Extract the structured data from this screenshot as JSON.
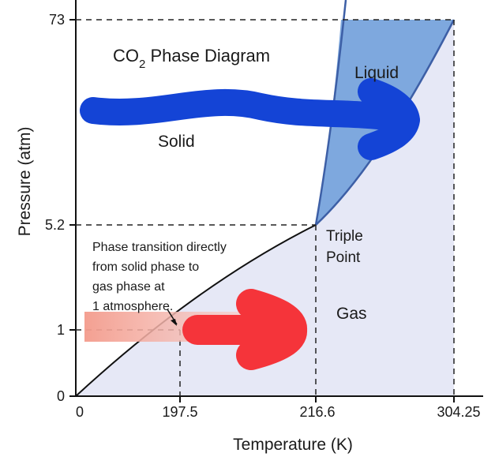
{
  "title": {
    "main": "CO",
    "subscript": "2",
    "rest": " Phase Diagram"
  },
  "axes": {
    "x_label": "Temperature (K)",
    "y_label": "Pressure (atm)",
    "x_ticks": [
      "0",
      "197.5",
      "216.6",
      "304.25"
    ],
    "y_ticks": [
      "73",
      "5.2",
      "1",
      "0"
    ]
  },
  "regions": {
    "solid": "Solid",
    "liquid": "Liquid",
    "gas": "Gas"
  },
  "triple_point": {
    "line1": "Triple",
    "line2": "Point"
  },
  "annotation": [
    "Phase transition directly",
    "from solid phase to",
    "gas phase at",
    "1 atmosphere."
  ],
  "colors": {
    "liquid_fill": "#7ea8de",
    "gas_fill": "#e6e8f6",
    "boundary": "#3d5fa6",
    "curve": "#111111",
    "blue_arrow": "#1444d6",
    "red_arrow": "#f5343a",
    "pink_band": "#f6a99a"
  }
}
